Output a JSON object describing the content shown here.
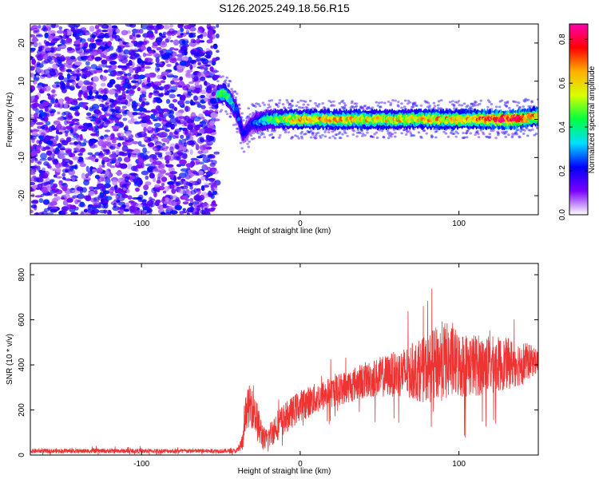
{
  "figure": {
    "title": "S126.2025.249.18.56.R15"
  },
  "chart_data": [
    {
      "type": "heatmap",
      "name": "spectrogram",
      "xlabel": "Height of straight line (km)",
      "ylabel": "Frequency (Hz)",
      "xlim": [
        -170,
        150
      ],
      "ylim": [
        -25,
        25
      ],
      "x_ticks": [
        -100,
        0,
        100
      ],
      "x_tick_labels": [
        "-100",
        "0",
        "100"
      ],
      "y_ticks": [
        -20,
        -10,
        0,
        10,
        20
      ],
      "y_tick_labels": [
        "-20",
        "-10",
        "0",
        "10",
        "20"
      ],
      "grid": false,
      "noise_region": {
        "x_range": [
          -170,
          -52
        ],
        "freq_range": [
          -25,
          25
        ],
        "amplitude": 0.18
      },
      "signal_track": [
        {
          "x": -52,
          "freq": 6.5,
          "amplitude": 0.38
        },
        {
          "x": -48,
          "freq": 7.0,
          "amplitude": 0.45
        },
        {
          "x": -44,
          "freq": 5.0,
          "amplitude": 0.35
        },
        {
          "x": -40,
          "freq": 2.0,
          "amplitude": 0.25
        },
        {
          "x": -36,
          "freq": -4.0,
          "amplitude": 0.18
        },
        {
          "x": -30,
          "freq": -1.0,
          "amplitude": 0.22
        },
        {
          "x": -20,
          "freq": 0.0,
          "amplitude": 0.4
        },
        {
          "x": 0,
          "freq": 0.0,
          "amplitude": 0.6
        },
        {
          "x": 50,
          "freq": 0.0,
          "amplitude": 0.55
        },
        {
          "x": 100,
          "freq": 0.0,
          "amplitude": 0.6
        },
        {
          "x": 135,
          "freq": 0.0,
          "amplitude": 0.8
        },
        {
          "x": 150,
          "freq": 0.8,
          "amplitude": 0.6
        }
      ],
      "colorbar": {
        "label": "Normalized spectral amplitude",
        "range": [
          0,
          0.87
        ],
        "ticks": [
          0.0,
          0.2,
          0.4,
          0.6,
          0.8
        ],
        "tick_labels": [
          "0.0",
          "0.2",
          "0.4",
          "0.6",
          "0.8"
        ],
        "colors": [
          "#ffffff",
          "#7a00ff",
          "#0000ff",
          "#00e0ff",
          "#00ff40",
          "#d8ff00",
          "#ffb000",
          "#ff0000",
          "#ff00b0"
        ]
      }
    },
    {
      "type": "line",
      "name": "snr",
      "xlabel": "Height of straight line (km)",
      "ylabel": "SNR (10 * v/v)",
      "xlim": [
        -170,
        150
      ],
      "ylim": [
        0,
        850
      ],
      "x_ticks": [
        -100,
        0,
        100
      ],
      "x_tick_labels": [
        "-100",
        "0",
        "100"
      ],
      "y_ticks": [
        0,
        200,
        400,
        600,
        800
      ],
      "y_tick_labels": [
        "0",
        "200",
        "400",
        "600",
        "800"
      ],
      "grid": false,
      "color": "#ee3333",
      "envelope": [
        {
          "x": -170,
          "y": 18,
          "spread": 10
        },
        {
          "x": -40,
          "y": 18,
          "spread": 10
        },
        {
          "x": -36,
          "y": 60,
          "spread": 40
        },
        {
          "x": -34,
          "y": 200,
          "spread": 80
        },
        {
          "x": -30,
          "y": 230,
          "spread": 110
        },
        {
          "x": -26,
          "y": 120,
          "spread": 80
        },
        {
          "x": -22,
          "y": 60,
          "spread": 50
        },
        {
          "x": -15,
          "y": 130,
          "spread": 70
        },
        {
          "x": 0,
          "y": 220,
          "spread": 70
        },
        {
          "x": 20,
          "y": 280,
          "spread": 70
        },
        {
          "x": 40,
          "y": 330,
          "spread": 80
        },
        {
          "x": 60,
          "y": 360,
          "spread": 100
        },
        {
          "x": 80,
          "y": 380,
          "spread": 150
        },
        {
          "x": 90,
          "y": 420,
          "spread": 180
        },
        {
          "x": 100,
          "y": 400,
          "spread": 150
        },
        {
          "x": 120,
          "y": 400,
          "spread": 130
        },
        {
          "x": 140,
          "y": 410,
          "spread": 100
        },
        {
          "x": 150,
          "y": 420,
          "spread": 50
        }
      ]
    }
  ]
}
